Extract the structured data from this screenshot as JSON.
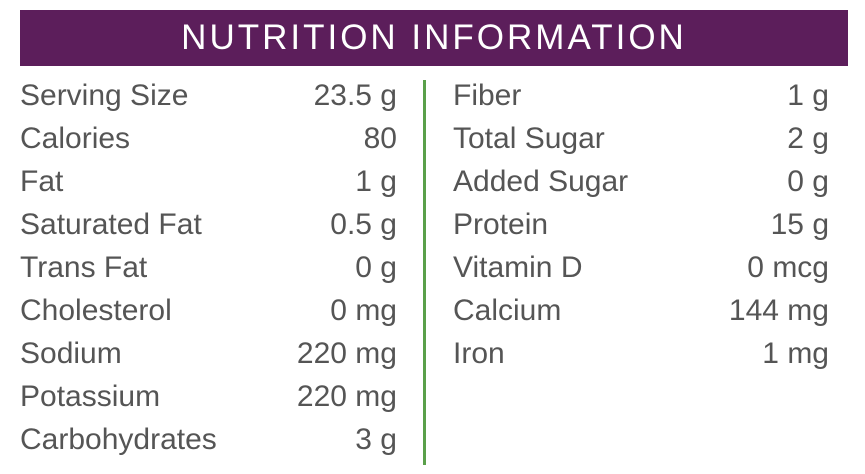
{
  "header": {
    "title": "NUTRITION INFORMATION"
  },
  "left": {
    "rows": [
      [
        "Serving Size",
        "23.5 g"
      ],
      [
        "Calories",
        "80"
      ],
      [
        "Fat",
        "1 g"
      ],
      [
        "Saturated Fat",
        "0.5 g"
      ],
      [
        "Trans Fat",
        "0 g"
      ],
      [
        "Cholesterol",
        "0 mg"
      ],
      [
        "Sodium",
        "220 mg"
      ],
      [
        "Potassium",
        "220 mg"
      ],
      [
        "Carbohydrates",
        "3 g"
      ]
    ]
  },
  "right": {
    "rows": [
      [
        "Fiber",
        "1 g"
      ],
      [
        "Total Sugar",
        "2 g"
      ],
      [
        "Added Sugar",
        "0 g"
      ],
      [
        "Protein",
        "15 g"
      ],
      [
        "Vitamin D",
        "0 mcg"
      ],
      [
        "Calcium",
        "144 mg"
      ],
      [
        "Iron",
        "1 mg"
      ]
    ]
  }
}
